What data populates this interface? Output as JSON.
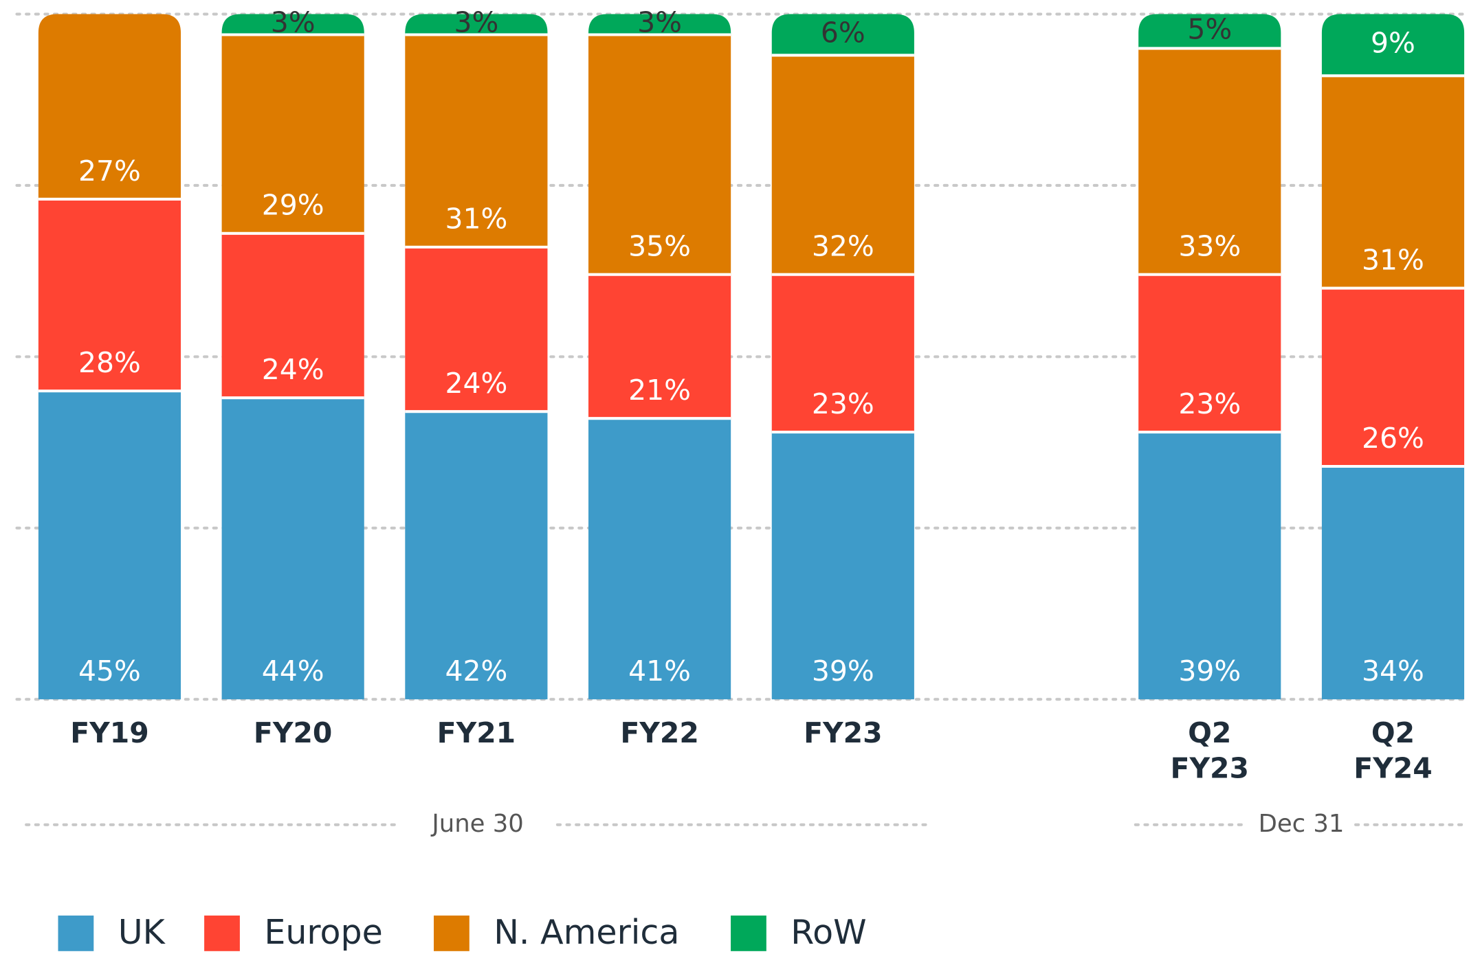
{
  "chart_data": {
    "type": "stacked_bar",
    "categories": [
      "FY19",
      "FY20",
      "FY21",
      "FY22",
      "FY23",
      null,
      "Q2 FY23",
      "Q2 FY24"
    ],
    "series": [
      {
        "name": "UK",
        "color": "#3e9bc9",
        "values": [
          45,
          44,
          42,
          41,
          39,
          null,
          39,
          34
        ],
        "value_labels": [
          "45%",
          "44%",
          "42%",
          "41%",
          "39%",
          null,
          "39%",
          "34%"
        ]
      },
      {
        "name": "Europe",
        "color": "#ff4433",
        "values": [
          28,
          24,
          24,
          21,
          23,
          null,
          23,
          26
        ],
        "value_labels": [
          "28%",
          "24%",
          "24%",
          "21%",
          "23%",
          null,
          "23%",
          "26%"
        ]
      },
      {
        "name": "N. America",
        "color": "#dd7b00",
        "values": [
          27,
          29,
          31,
          35,
          32,
          null,
          33,
          31
        ],
        "value_labels": [
          "27%",
          "29%",
          "31%",
          "35%",
          "32%",
          null,
          "33%",
          "31%"
        ]
      },
      {
        "name": "RoW",
        "color": "#00a85a",
        "values": [
          null,
          3,
          3,
          3,
          6,
          null,
          5,
          9
        ],
        "value_labels": [
          null,
          "3%",
          "3%",
          "3%",
          "6%",
          null,
          "5%",
          "9%"
        ]
      }
    ],
    "group_labels": [
      "June 30",
      "Dec 31"
    ],
    "ylim": [
      0,
      100
    ],
    "yticks": [
      0,
      25,
      50,
      75,
      100
    ],
    "grid": true
  }
}
